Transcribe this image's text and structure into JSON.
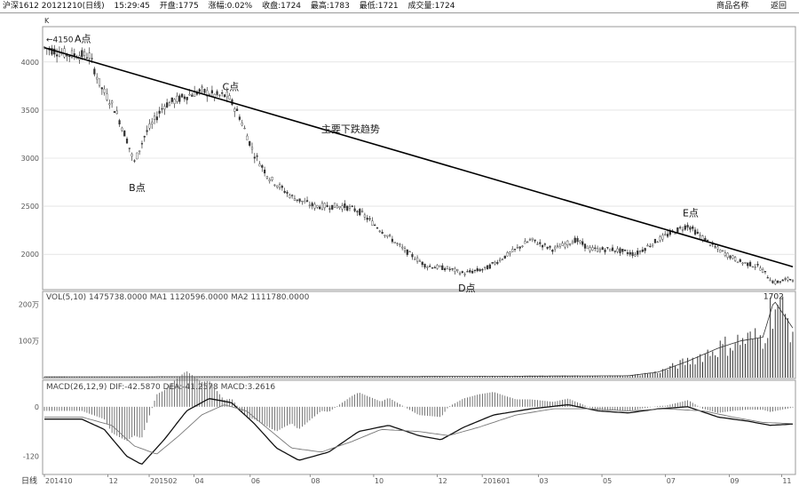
{
  "header": {
    "security": "沪深1612 20121210(日线)",
    "time": "15:29:45",
    "open_label": "开盘:1775",
    "change_label": "涨幅:0.02%",
    "close_label": "收盘:1724",
    "high_label": "最高:1783",
    "low_label": "最低:1721",
    "volume_label": "成交量:1724",
    "menu_items": [
      "商品名称",
      "返回"
    ]
  },
  "colors": {
    "candle": "#333333",
    "trendline": "#000000",
    "grid": "#d6d6d6",
    "axis_text": "#555555"
  },
  "chart_data": [
    {
      "type": "candlestick",
      "title": "K",
      "ylim": [
        1650,
        4350
      ],
      "y_ticks": [
        4000,
        3500,
        3000,
        2500,
        2000
      ],
      "y_tick_labels": [
        "4000",
        "3500",
        "3000",
        "2500",
        "2000"
      ],
      "key_points": [
        {
          "label": "A点",
          "value": 4150,
          "value_label": "4150",
          "position": 0.0
        },
        {
          "label": "B点",
          "value": 2900,
          "position": 0.12
        },
        {
          "label": "C点",
          "value": 3650,
          "position": 0.245
        },
        {
          "label": "D点",
          "value": 1800,
          "position": 0.56
        },
        {
          "label": "E点",
          "value": 2300,
          "position": 0.86
        },
        {
          "label": "",
          "value": 1702,
          "value_label": "1702",
          "position": 0.975
        }
      ],
      "trendline": {
        "label": "主要下跌趋势",
        "from": [
          0.0,
          4150
        ],
        "to": [
          1.0,
          1870
        ]
      },
      "price_path": [
        [
          0.0,
          4150
        ],
        [
          0.03,
          4080
        ],
        [
          0.06,
          4070
        ],
        [
          0.075,
          3750
        ],
        [
          0.095,
          3500
        ],
        [
          0.11,
          3200
        ],
        [
          0.12,
          2950
        ],
        [
          0.135,
          3250
        ],
        [
          0.16,
          3550
        ],
        [
          0.19,
          3650
        ],
        [
          0.21,
          3700
        ],
        [
          0.23,
          3650
        ],
        [
          0.245,
          3650
        ],
        [
          0.26,
          3450
        ],
        [
          0.28,
          3050
        ],
        [
          0.3,
          2800
        ],
        [
          0.33,
          2600
        ],
        [
          0.36,
          2500
        ],
        [
          0.4,
          2500
        ],
        [
          0.42,
          2450
        ],
        [
          0.45,
          2250
        ],
        [
          0.48,
          2050
        ],
        [
          0.51,
          1880
        ],
        [
          0.54,
          1850
        ],
        [
          0.56,
          1800
        ],
        [
          0.59,
          1850
        ],
        [
          0.62,
          2000
        ],
        [
          0.65,
          2150
        ],
        [
          0.68,
          2050
        ],
        [
          0.71,
          2150
        ],
        [
          0.73,
          2050
        ],
        [
          0.76,
          2050
        ],
        [
          0.79,
          2000
        ],
        [
          0.82,
          2150
        ],
        [
          0.845,
          2250
        ],
        [
          0.86,
          2300
        ],
        [
          0.875,
          2200
        ],
        [
          0.9,
          2050
        ],
        [
          0.93,
          1920
        ],
        [
          0.955,
          1870
        ],
        [
          0.975,
          1702
        ],
        [
          1.0,
          1750
        ]
      ]
    },
    {
      "type": "bar",
      "title": "VOL(5,10) 1475738.0000 MA1 1120596.0000 MA2 1111780.0000",
      "ylim": [
        0,
        2300000
      ],
      "y_ticks": [
        1000000,
        2000000
      ],
      "y_tick_labels": [
        "100万",
        "200万"
      ],
      "volume_path": [
        [
          0.0,
          20000
        ],
        [
          0.5,
          30000
        ],
        [
          0.78,
          50000
        ],
        [
          0.82,
          150000
        ],
        [
          0.86,
          450000
        ],
        [
          0.9,
          800000
        ],
        [
          0.93,
          1000000
        ],
        [
          0.96,
          1100000
        ],
        [
          0.975,
          2100000
        ],
        [
          1.0,
          1350000
        ]
      ]
    },
    {
      "type": "line",
      "title": "MACD(26,12,9) DIF:-42.5870 DEA:-41.2578 MACD:3.2616",
      "ylim": [
        -160,
        60
      ],
      "y_ticks": [
        0,
        -120
      ],
      "y_tick_labels": [
        "0",
        "-120"
      ],
      "series": [
        {
          "name": "DIF",
          "values_path": [
            [
              0.0,
              -30
            ],
            [
              0.05,
              -30
            ],
            [
              0.08,
              -55
            ],
            [
              0.11,
              -120
            ],
            [
              0.13,
              -140
            ],
            [
              0.16,
              -80
            ],
            [
              0.19,
              -10
            ],
            [
              0.22,
              20
            ],
            [
              0.25,
              10
            ],
            [
              0.28,
              -40
            ],
            [
              0.31,
              -100
            ],
            [
              0.34,
              -130
            ],
            [
              0.38,
              -110
            ],
            [
              0.42,
              -60
            ],
            [
              0.46,
              -45
            ],
            [
              0.5,
              -70
            ],
            [
              0.53,
              -80
            ],
            [
              0.56,
              -50
            ],
            [
              0.6,
              -20
            ],
            [
              0.65,
              -5
            ],
            [
              0.7,
              5
            ],
            [
              0.74,
              -10
            ],
            [
              0.78,
              -15
            ],
            [
              0.82,
              -5
            ],
            [
              0.86,
              0
            ],
            [
              0.9,
              -25
            ],
            [
              0.94,
              -35
            ],
            [
              0.97,
              -45
            ],
            [
              1.0,
              -42
            ]
          ]
        },
        {
          "name": "DEA",
          "values_path": [
            [
              0.0,
              -25
            ],
            [
              0.05,
              -25
            ],
            [
              0.09,
              -45
            ],
            [
              0.12,
              -95
            ],
            [
              0.15,
              -115
            ],
            [
              0.18,
              -70
            ],
            [
              0.21,
              -20
            ],
            [
              0.24,
              5
            ],
            [
              0.27,
              -10
            ],
            [
              0.3,
              -55
            ],
            [
              0.33,
              -100
            ],
            [
              0.37,
              -110
            ],
            [
              0.41,
              -85
            ],
            [
              0.45,
              -55
            ],
            [
              0.5,
              -60
            ],
            [
              0.54,
              -70
            ],
            [
              0.58,
              -50
            ],
            [
              0.63,
              -20
            ],
            [
              0.68,
              -5
            ],
            [
              0.73,
              -5
            ],
            [
              0.78,
              -10
            ],
            [
              0.83,
              -5
            ],
            [
              0.88,
              -10
            ],
            [
              0.92,
              -25
            ],
            [
              0.96,
              -38
            ],
            [
              1.0,
              -41
            ]
          ]
        }
      ]
    }
  ],
  "x_axis": {
    "label": "日线",
    "tick_labels": [
      "201410",
      "12",
      "201502",
      "04",
      "06",
      "08",
      "10",
      "12",
      "201601",
      "03",
      "05",
      "07",
      "09",
      "11"
    ],
    "tick_positions": [
      0.0,
      0.085,
      0.14,
      0.2,
      0.275,
      0.355,
      0.44,
      0.525,
      0.585,
      0.66,
      0.745,
      0.83,
      0.915,
      0.985
    ]
  }
}
